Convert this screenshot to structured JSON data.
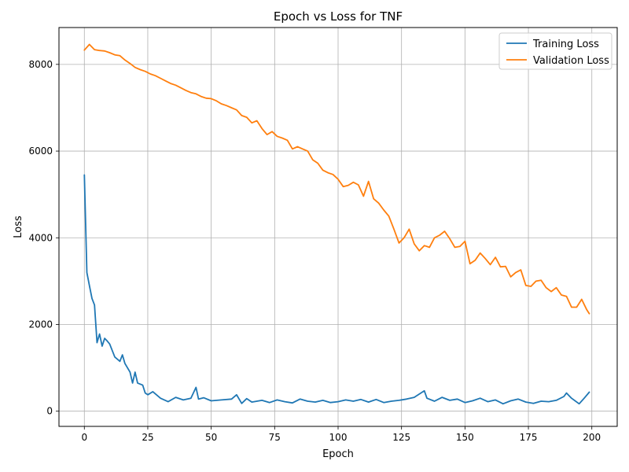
{
  "chart_data": {
    "type": "line",
    "title": "Epoch vs Loss for TNF",
    "xlabel": "Epoch",
    "ylabel": "Loss",
    "xlim": [
      -10,
      210
    ],
    "ylim": [
      -350,
      8850
    ],
    "xticks": [
      0,
      25,
      50,
      75,
      100,
      125,
      150,
      175,
      200
    ],
    "yticks": [
      0,
      2000,
      4000,
      6000,
      8000
    ],
    "grid": true,
    "legend_position": "top-right",
    "series": [
      {
        "name": "Training Loss",
        "color": "#1f77b4",
        "x": [
          0,
          1,
          2,
          3,
          4,
          5,
          6,
          7,
          8,
          9,
          10,
          12,
          14,
          15,
          16,
          18,
          19,
          20,
          21,
          23,
          24,
          25,
          27,
          30,
          33,
          36,
          39,
          42,
          44,
          45,
          47,
          50,
          54,
          58,
          60,
          62,
          64,
          66,
          70,
          73,
          76,
          79,
          82,
          85,
          88,
          91,
          94,
          97,
          100,
          103,
          106,
          109,
          112,
          115,
          118,
          121,
          124,
          127,
          130,
          134,
          135,
          138,
          141,
          144,
          147,
          150,
          153,
          156,
          159,
          162,
          165,
          168,
          171,
          174,
          177,
          180,
          183,
          186,
          189,
          190,
          192,
          195,
          197,
          199
        ],
        "values": [
          5450,
          3200,
          2900,
          2600,
          2450,
          1580,
          1780,
          1500,
          1680,
          1620,
          1550,
          1250,
          1150,
          1300,
          1100,
          900,
          650,
          900,
          650,
          600,
          420,
          380,
          450,
          300,
          220,
          320,
          260,
          300,
          550,
          280,
          310,
          240,
          260,
          280,
          380,
          180,
          290,
          210,
          250,
          200,
          260,
          220,
          190,
          280,
          230,
          210,
          250,
          200,
          220,
          260,
          230,
          270,
          210,
          270,
          200,
          230,
          250,
          280,
          320,
          470,
          300,
          230,
          320,
          250,
          280,
          200,
          240,
          300,
          220,
          260,
          170,
          240,
          280,
          210,
          180,
          230,
          220,
          250,
          340,
          420,
          300,
          170,
          300,
          440
        ]
      },
      {
        "name": "Validation Loss",
        "color": "#ff7f0e",
        "x": [
          0,
          2,
          4,
          6,
          8,
          10,
          12,
          14,
          16,
          18,
          20,
          22,
          24,
          26,
          28,
          30,
          32,
          34,
          36,
          38,
          40,
          42,
          44,
          46,
          48,
          50,
          52,
          54,
          56,
          58,
          60,
          62,
          64,
          66,
          68,
          70,
          72,
          74,
          76,
          78,
          80,
          82,
          84,
          86,
          88,
          90,
          92,
          94,
          96,
          98,
          100,
          102,
          104,
          106,
          108,
          110,
          112,
          114,
          116,
          118,
          120,
          122,
          124,
          126,
          128,
          130,
          132,
          134,
          136,
          138,
          140,
          142,
          144,
          146,
          148,
          150,
          152,
          154,
          156,
          158,
          160,
          162,
          164,
          166,
          168,
          170,
          172,
          174,
          176,
          178,
          180,
          182,
          184,
          186,
          188,
          190,
          192,
          194,
          196,
          198,
          199
        ],
        "values": [
          8330,
          8460,
          8340,
          8320,
          8310,
          8270,
          8220,
          8200,
          8100,
          8020,
          7930,
          7880,
          7840,
          7780,
          7740,
          7680,
          7620,
          7560,
          7520,
          7460,
          7400,
          7350,
          7320,
          7260,
          7220,
          7210,
          7160,
          7090,
          7050,
          7000,
          6950,
          6820,
          6780,
          6650,
          6700,
          6520,
          6380,
          6450,
          6340,
          6300,
          6250,
          6050,
          6100,
          6050,
          6000,
          5800,
          5720,
          5560,
          5500,
          5460,
          5350,
          5180,
          5210,
          5280,
          5220,
          4960,
          5300,
          4900,
          4800,
          4640,
          4500,
          4200,
          3880,
          4000,
          4200,
          3860,
          3700,
          3820,
          3780,
          4000,
          4060,
          4150,
          3980,
          3780,
          3800,
          3920,
          3400,
          3480,
          3650,
          3520,
          3380,
          3550,
          3330,
          3340,
          3100,
          3200,
          3260,
          2900,
          2880,
          3000,
          3020,
          2850,
          2760,
          2850,
          2680,
          2650,
          2400,
          2400,
          2580,
          2340,
          2250
        ]
      }
    ]
  }
}
